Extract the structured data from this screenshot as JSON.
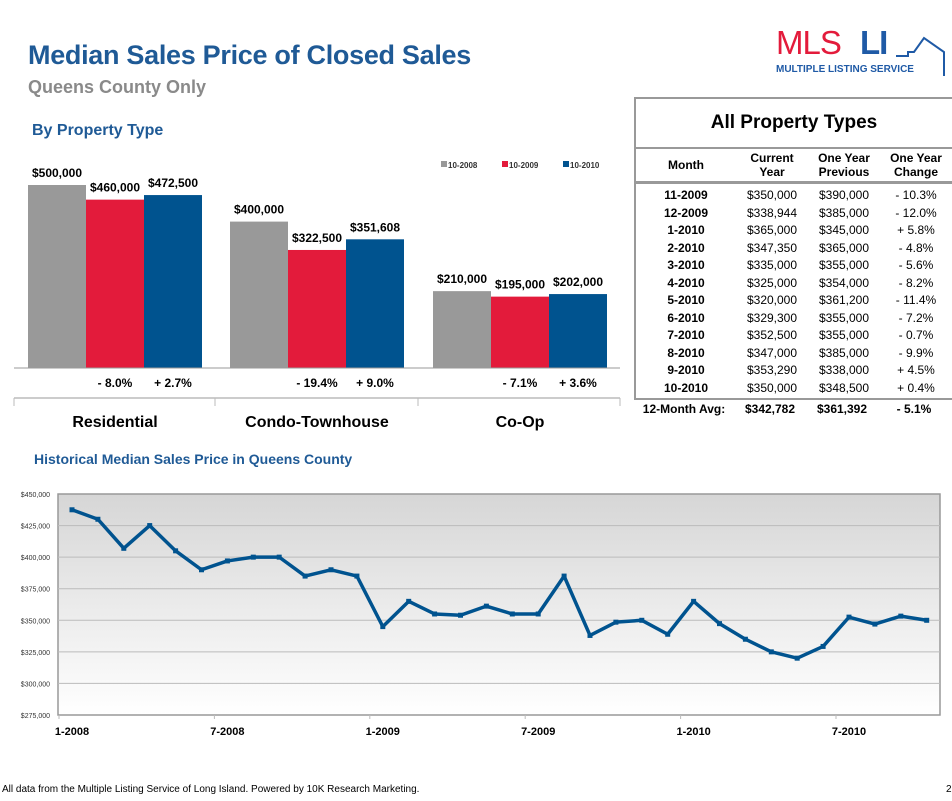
{
  "header": {
    "title": "Median Sales Price of Closed Sales",
    "subtitle": "Queens County Only"
  },
  "logo": {
    "text_red": "MLS",
    "text_blue": "LI",
    "tagline": "MULTIPLE LISTING SERVICE",
    "colors": {
      "red": "#e31b3b",
      "blue": "#1f5aa6"
    }
  },
  "section_title": "By Property Type",
  "chart_data": [
    {
      "type": "bar",
      "categories": [
        "Residential",
        "Condo-Townhouse",
        "Co-Op"
      ],
      "series": [
        {
          "name": "10-2008",
          "color": "#999999",
          "values": [
            500000,
            400000,
            210000
          ],
          "labels": [
            "$500,000",
            "$400,000",
            "$210,000"
          ]
        },
        {
          "name": "10-2009",
          "color": "#e31b3b",
          "values": [
            460000,
            322500,
            195000
          ],
          "labels": [
            "$460,000",
            "$322,500",
            "$195,000"
          ]
        },
        {
          "name": "10-2010",
          "color": "#00538f",
          "values": [
            472500,
            351608,
            202000
          ],
          "labels": [
            "$472,500",
            "$351,608",
            "$202,000"
          ]
        }
      ],
      "changes": [
        [
          "- 8.0%",
          "+ 2.7%"
        ],
        [
          "- 19.4%",
          "+ 9.0%"
        ],
        [
          "- 7.1%",
          "+ 3.6%"
        ]
      ],
      "legend_placement": "top-right",
      "ylim": [
        0,
        500000
      ]
    },
    {
      "type": "line",
      "title": "Historical Median Sales Price in Queens County",
      "x": [
        "1-2008",
        "2-2008",
        "3-2008",
        "4-2008",
        "5-2008",
        "6-2008",
        "7-2008",
        "8-2008",
        "9-2008",
        "10-2008",
        "11-2008",
        "12-2008",
        "1-2009",
        "2-2009",
        "3-2009",
        "4-2009",
        "5-2009",
        "6-2009",
        "7-2009",
        "8-2009",
        "9-2009",
        "10-2009",
        "11-2009",
        "12-2009",
        "1-2010",
        "2-2010",
        "3-2010",
        "4-2010",
        "5-2010",
        "6-2010",
        "7-2010",
        "8-2010",
        "9-2010",
        "10-2010"
      ],
      "values": [
        437500,
        430000,
        407000,
        425000,
        405000,
        390000,
        397000,
        400000,
        400000,
        385000,
        390000,
        385000,
        345000,
        365000,
        355000,
        354000,
        361200,
        355000,
        355000,
        385000,
        338000,
        348500,
        350000,
        338944,
        365000,
        347350,
        335000,
        325000,
        320000,
        329300,
        352500,
        347000,
        353290,
        350000
      ],
      "x_ticks": [
        "1-2008",
        "7-2008",
        "1-2009",
        "7-2009",
        "1-2010",
        "7-2010"
      ],
      "y_ticks": [
        "$275,000",
        "$300,000",
        "$325,000",
        "$350,000",
        "$375,000",
        "$400,000",
        "$425,000",
        "$450,000"
      ],
      "ylim": [
        275000,
        450000
      ],
      "grid": true,
      "color": "#00538f"
    }
  ],
  "table": {
    "title": "All Property Types",
    "headers": [
      "Month",
      "Current Year",
      "One Year Previous",
      "One Year Change"
    ],
    "rows": [
      [
        "11-2009",
        "$350,000",
        "$390,000",
        "- 10.3%"
      ],
      [
        "12-2009",
        "$338,944",
        "$385,000",
        "- 12.0%"
      ],
      [
        "1-2010",
        "$365,000",
        "$345,000",
        "+ 5.8%"
      ],
      [
        "2-2010",
        "$347,350",
        "$365,000",
        "- 4.8%"
      ],
      [
        "3-2010",
        "$335,000",
        "$355,000",
        "- 5.6%"
      ],
      [
        "4-2010",
        "$325,000",
        "$354,000",
        "- 8.2%"
      ],
      [
        "5-2010",
        "$320,000",
        "$361,200",
        "- 11.4%"
      ],
      [
        "6-2010",
        "$329,300",
        "$355,000",
        "- 7.2%"
      ],
      [
        "7-2010",
        "$352,500",
        "$355,000",
        "- 0.7%"
      ],
      [
        "8-2010",
        "$347,000",
        "$385,000",
        "- 9.9%"
      ],
      [
        "9-2010",
        "$353,290",
        "$338,000",
        "+ 4.5%"
      ],
      [
        "10-2010",
        "$350,000",
        "$348,500",
        "+ 0.4%"
      ]
    ],
    "average": [
      "12-Month Avg:",
      "$342,782",
      "$361,392",
      "- 5.1%"
    ]
  },
  "footer": {
    "text": "All data from the Multiple Listing Service of Long Island. Powered by 10K Research Marketing.",
    "page": "2"
  }
}
